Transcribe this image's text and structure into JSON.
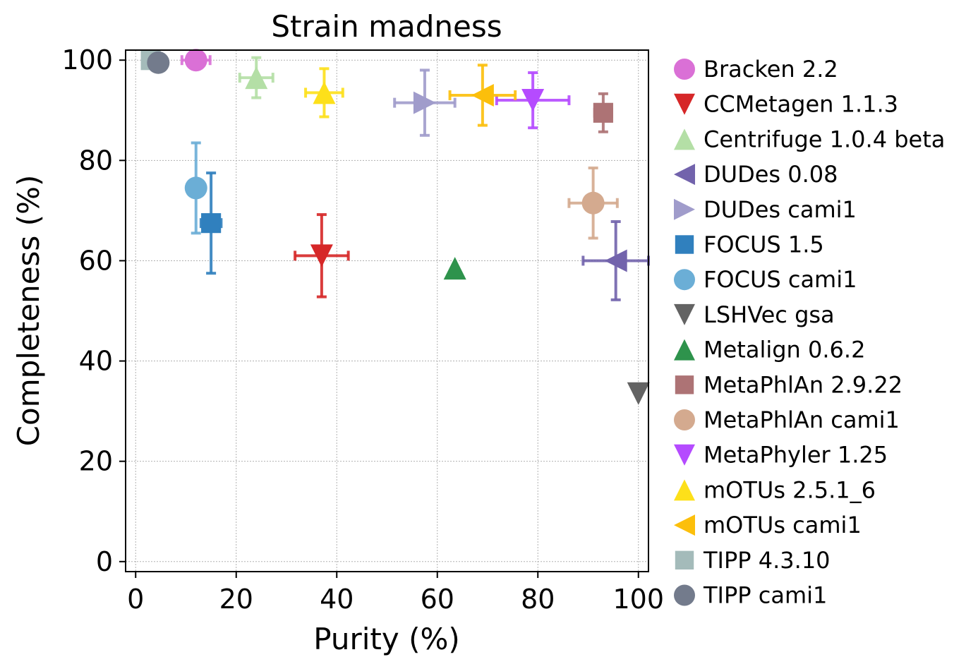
{
  "chart_data": {
    "type": "scatter",
    "title": "Strain madness",
    "xlabel": "Purity (%)",
    "ylabel": "Completeness (%)",
    "xlim": [
      -2,
      102
    ],
    "ylim": [
      -2,
      102
    ],
    "xticks": [
      0,
      20,
      40,
      60,
      80,
      100
    ],
    "yticks": [
      0,
      20,
      40,
      60,
      80,
      100
    ],
    "grid": true,
    "legend_position": "outside-right",
    "series": [
      {
        "name": "Bracken 2.2",
        "marker": "circle",
        "color": "#da70d6",
        "x": 12,
        "y": 100,
        "xerr": 2.8,
        "yerr": 0.3
      },
      {
        "name": "CCMetagen 1.1.3",
        "marker": "triangle-down",
        "color": "#d62728",
        "x": 37,
        "y": 61,
        "xerr": 5.3,
        "yerr": 8.2
      },
      {
        "name": "Centrifuge 1.0.4 beta",
        "marker": "triangle-up",
        "color": "#b4dfa6",
        "x": 24,
        "y": 96.5,
        "xerr": 3.3,
        "yerr": 4
      },
      {
        "name": "DUDes 0.08",
        "marker": "triangle-left",
        "color": "#7263ac",
        "x": 95.5,
        "y": 60,
        "xerr": 6.5,
        "yerr": 7.8
      },
      {
        "name": "DUDes cami1",
        "marker": "triangle-right",
        "color": "#a09ccb",
        "x": 57.5,
        "y": 91.5,
        "xerr": 6,
        "yerr": 6.5
      },
      {
        "name": "FOCUS 1.5",
        "marker": "square",
        "color": "#3080be",
        "x": 15,
        "y": 67.5,
        "xerr": 2,
        "yerr": 10
      },
      {
        "name": "FOCUS cami1",
        "marker": "circle",
        "color": "#6baed6",
        "x": 12,
        "y": 74.5,
        "xerr": 0.3,
        "yerr": 9
      },
      {
        "name": "LSHVec gsa",
        "marker": "triangle-down",
        "color": "#636363",
        "x": 100,
        "y": 33.5,
        "xerr": 0,
        "yerr": 0
      },
      {
        "name": "Metalign 0.6.2",
        "marker": "triangle-up",
        "color": "#2e934c",
        "x": 63.5,
        "y": 58.5,
        "xerr": 0,
        "yerr": 0
      },
      {
        "name": "MetaPhlAn 2.9.22",
        "marker": "square",
        "color": "#ad7375",
        "x": 93,
        "y": 89.5,
        "xerr": 1.7,
        "yerr": 3.8
      },
      {
        "name": "MetaPhlAn cami1",
        "marker": "circle",
        "color": "#d4aa8f",
        "x": 91,
        "y": 71.5,
        "xerr": 4.8,
        "yerr": 7
      },
      {
        "name": "MetaPhyler 1.25",
        "marker": "triangle-down",
        "color": "#b54bff",
        "x": 79,
        "y": 92,
        "xerr": 7.2,
        "yerr": 5.5
      },
      {
        "name": "mOTUs 2.5.1_6",
        "marker": "triangle-up",
        "color": "#fde01a",
        "x": 37.5,
        "y": 93.5,
        "xerr": 3.7,
        "yerr": 4.8
      },
      {
        "name": "mOTUs cami1",
        "marker": "triangle-left",
        "color": "#fcbf0b",
        "x": 69,
        "y": 93,
        "xerr": 6.5,
        "yerr": 6
      },
      {
        "name": "TIPP 4.3.10",
        "marker": "square",
        "color": "#a4bbba",
        "x": 3,
        "y": 100,
        "xerr": 0,
        "yerr": 0
      },
      {
        "name": "TIPP cami1",
        "marker": "circle",
        "color": "#737b8c",
        "x": 4.5,
        "y": 99.5,
        "xerr": 0.2,
        "yerr": 1.5
      }
    ]
  }
}
